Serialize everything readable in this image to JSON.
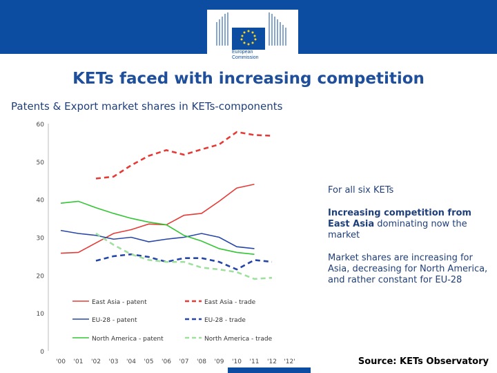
{
  "header": {
    "logo_text_line1": "European",
    "logo_text_line2": "Commission",
    "brand_color": "#0c4da2"
  },
  "slide": {
    "title": "KETs faced with increasing competition",
    "subtitle": "Patents & Export market shares in KETs-components"
  },
  "chart_data": {
    "type": "line",
    "title": "",
    "x": [
      "'00",
      "'01",
      "'02",
      "'03",
      "'04",
      "'05",
      "'06",
      "'07",
      "'08",
      "'09",
      "'10",
      "'11",
      "'12",
      "'12'"
    ],
    "ylim": [
      0,
      60
    ],
    "yticks": [
      "0",
      "10",
      "20",
      "30",
      "40",
      "50",
      "60"
    ],
    "series": [
      {
        "name": "East Asia - patent",
        "color": "#e53b37",
        "dashed": false,
        "values": [
          25.8,
          26,
          28.5,
          31,
          32,
          33.5,
          33.3,
          35.8,
          36.3,
          39.5,
          43,
          44,
          null,
          null
        ]
      },
      {
        "name": "East Asia - trade",
        "color": "#e53b37",
        "dashed": true,
        "values": [
          null,
          null,
          45.5,
          46,
          49,
          51.5,
          53,
          51.8,
          53.2,
          54.5,
          57.8,
          57,
          56.8,
          null
        ]
      },
      {
        "name": "EU-28 - patent",
        "color": "#2546a8",
        "dashed": false,
        "values": [
          31.8,
          31,
          30.5,
          29.5,
          30,
          28.8,
          29.5,
          30,
          31,
          30,
          27.5,
          27,
          null,
          null
        ]
      },
      {
        "name": "EU-28 - trade",
        "color": "#2546a8",
        "dashed": true,
        "values": [
          null,
          null,
          23.8,
          25,
          25.5,
          24.8,
          23.5,
          24.5,
          24.5,
          23.5,
          21.5,
          24,
          23.5,
          null
        ]
      },
      {
        "name": "North America - patent",
        "color": "#33c533",
        "dashed": false,
        "values": [
          39,
          39.5,
          37.8,
          36.3,
          35,
          34,
          33.3,
          30.5,
          29,
          27,
          26,
          25.5,
          null,
          null
        ]
      },
      {
        "name": "North America - trade",
        "color": "#9fe09f",
        "dashed": true,
        "values": [
          null,
          null,
          31,
          28,
          25.5,
          24,
          23.5,
          23.5,
          22,
          21.5,
          20.8,
          19,
          19.3,
          null
        ]
      }
    ],
    "legend": [
      {
        "label": "East Asia - patent",
        "series": 0
      },
      {
        "label": "East Asia - trade",
        "series": 1
      },
      {
        "label": "EU-28 - patent",
        "series": 2
      },
      {
        "label": "EU-28 - trade",
        "series": 3
      },
      {
        "label": "North America - patent",
        "series": 4
      },
      {
        "label": "North America - trade",
        "series": 5
      }
    ],
    "legend_position": "bottom-inside"
  },
  "notes": {
    "line1": "For all six KETs",
    "line2_bold": "Increasing competition from East Asia",
    "line2_rest": " dominating now the market",
    "line3": "Market shares are increasing for Asia, decreasing for North America, and rather constant for EU-28"
  },
  "footer": {
    "source": "Source: KETs Observatory"
  }
}
